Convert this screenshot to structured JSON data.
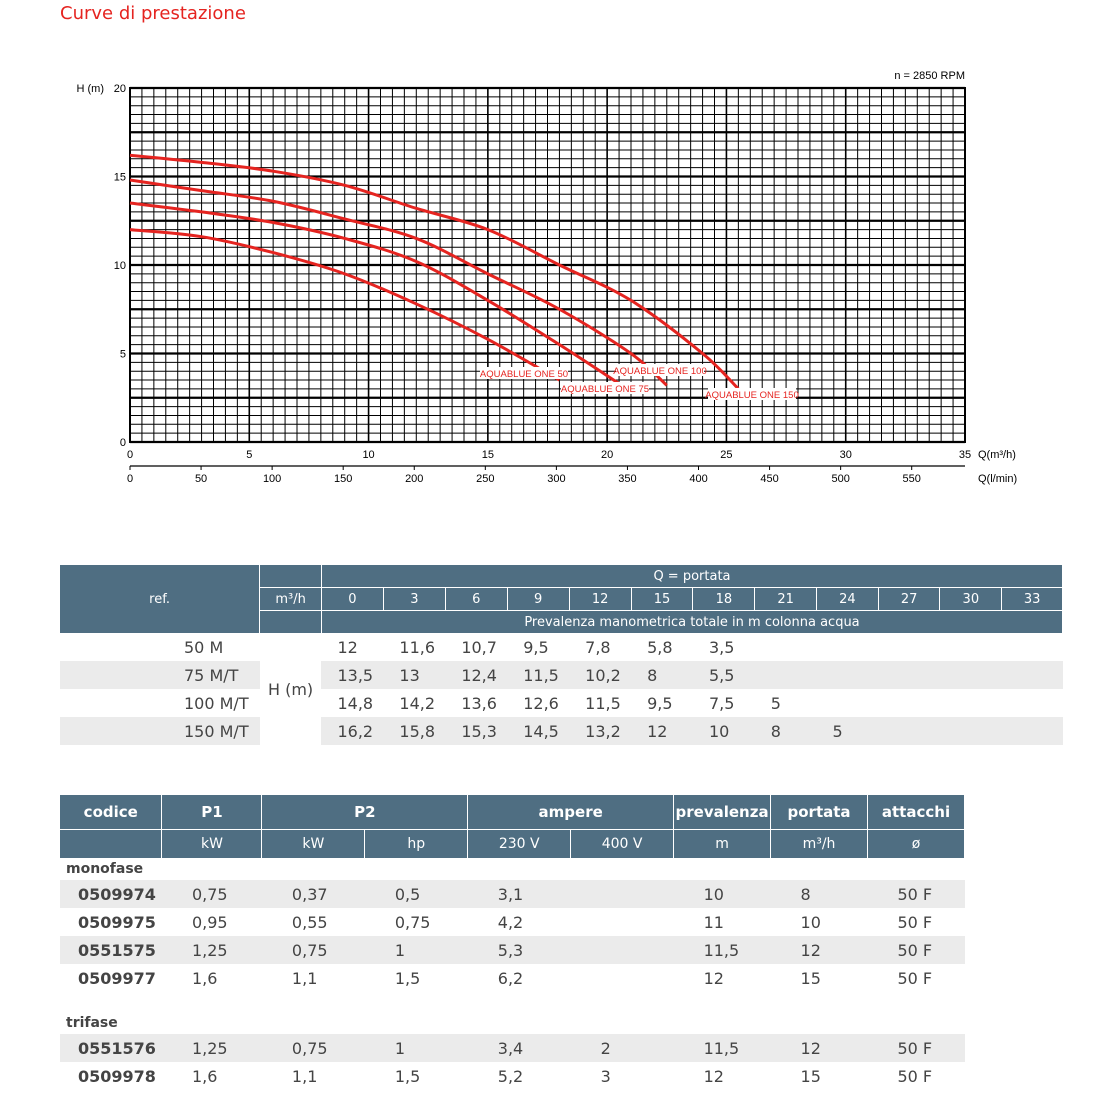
{
  "title": "Curve di prestazione",
  "chart_data": {
    "type": "line",
    "annotation": "n = 2850 RPM",
    "ylabel": "H (m)",
    "xlabel": "Q(m³/h)",
    "x2label": "Q(l/min)",
    "ylim": [
      0,
      20
    ],
    "xlim": [
      0,
      35
    ],
    "x2lim": [
      0,
      587.5
    ],
    "yticks": [
      "0",
      "5",
      "10",
      "15",
      "20"
    ],
    "xticks": [
      "0",
      "5",
      "10",
      "15",
      "20",
      "25",
      "30",
      "35"
    ],
    "x2ticks": [
      "0",
      "50",
      "100",
      "150",
      "200",
      "250",
      "300",
      "350",
      "400",
      "450",
      "500",
      "550"
    ],
    "series": [
      {
        "name": "AQUABLUE ONE 50",
        "x": [
          0,
          3,
          6,
          9,
          12,
          15,
          18
        ],
        "y": [
          12,
          11.6,
          10.7,
          9.5,
          7.8,
          5.8,
          3.5
        ]
      },
      {
        "name": "AQUABLUE ONE 75",
        "x": [
          0,
          3,
          6,
          9,
          12,
          15,
          18,
          20.5
        ],
        "y": [
          13.5,
          13,
          12.4,
          11.5,
          10.2,
          8,
          5.5,
          3.3
        ]
      },
      {
        "name": "AQUABLUE ONE 100",
        "x": [
          0,
          3,
          6,
          9,
          12,
          15,
          18,
          21,
          22.5
        ],
        "y": [
          14.8,
          14.2,
          13.6,
          12.6,
          11.5,
          9.5,
          7.5,
          5,
          3.2
        ]
      },
      {
        "name": "AQUABLUE ONE 150",
        "x": [
          0,
          3,
          6,
          9,
          12,
          15,
          18,
          21,
          24,
          25.5
        ],
        "y": [
          16.2,
          15.8,
          15.3,
          14.5,
          13.2,
          12,
          10,
          8,
          5,
          3
        ]
      }
    ]
  },
  "perf_table": {
    "ref_label": "ref.",
    "unit_label": "m³/h",
    "q_header": "Q = portata",
    "h_header": "Prevalenza manometrica totale in m colonna acqua",
    "h_label": "H (m)",
    "q_values": [
      "0",
      "3",
      "6",
      "9",
      "12",
      "15",
      "18",
      "21",
      "24",
      "27",
      "30",
      "33"
    ],
    "rows": [
      {
        "ref": "50 M",
        "values": [
          "12",
          "11,6",
          "10,7",
          "9,5",
          "7,8",
          "5,8",
          "3,5",
          "",
          "",
          "",
          "",
          ""
        ]
      },
      {
        "ref": "75 M/T",
        "values": [
          "13,5",
          "13",
          "12,4",
          "11,5",
          "10,2",
          "8",
          "5,5",
          "",
          "",
          "",
          "",
          ""
        ]
      },
      {
        "ref": "100 M/T",
        "values": [
          "14,8",
          "14,2",
          "13,6",
          "12,6",
          "11,5",
          "9,5",
          "7,5",
          "5",
          "",
          "",
          "",
          ""
        ]
      },
      {
        "ref": "150 M/T",
        "values": [
          "16,2",
          "15,8",
          "15,3",
          "14,5",
          "13,2",
          "12",
          "10",
          "8",
          "5",
          "",
          "",
          ""
        ]
      }
    ]
  },
  "spec_table": {
    "headers": {
      "codice": "codice",
      "p1": "P1",
      "p2": "P2",
      "ampere": "ampere",
      "prevalenza": "prevalenza",
      "portata": "portata",
      "attacchi": "attacchi"
    },
    "units": {
      "p1": "kW",
      "p2_kw": "kW",
      "p2_hp": "hp",
      "v230": "230 V",
      "v400": "400 V",
      "prev": "m",
      "port": "m³/h",
      "att": "ø"
    },
    "groups": [
      {
        "name": "monofase",
        "rows": [
          {
            "codice": "0509974",
            "p1": "0,75",
            "p2kw": "0,37",
            "hp": "0,5",
            "a230": "3,1",
            "a400": "",
            "prev": "10",
            "port": "8",
            "att": "50 F"
          },
          {
            "codice": "0509975",
            "p1": "0,95",
            "p2kw": "0,55",
            "hp": "0,75",
            "a230": "4,2",
            "a400": "",
            "prev": "11",
            "port": "10",
            "att": "50 F"
          },
          {
            "codice": "0551575",
            "p1": "1,25",
            "p2kw": "0,75",
            "hp": "1",
            "a230": "5,3",
            "a400": "",
            "prev": "11,5",
            "port": "12",
            "att": "50 F"
          },
          {
            "codice": "0509977",
            "p1": "1,6",
            "p2kw": "1,1",
            "hp": "1,5",
            "a230": "6,2",
            "a400": "",
            "prev": "12",
            "port": "15",
            "att": "50 F"
          }
        ]
      },
      {
        "name": "trifase",
        "rows": [
          {
            "codice": "0551576",
            "p1": "1,25",
            "p2kw": "0,75",
            "hp": "1",
            "a230": "3,4",
            "a400": "2",
            "prev": "11,5",
            "port": "12",
            "att": "50 F"
          },
          {
            "codice": "0509978",
            "p1": "1,6",
            "p2kw": "1,1",
            "hp": "1,5",
            "a230": "5,2",
            "a400": "3",
            "prev": "12",
            "port": "15",
            "att": "50 F"
          }
        ]
      }
    ]
  }
}
